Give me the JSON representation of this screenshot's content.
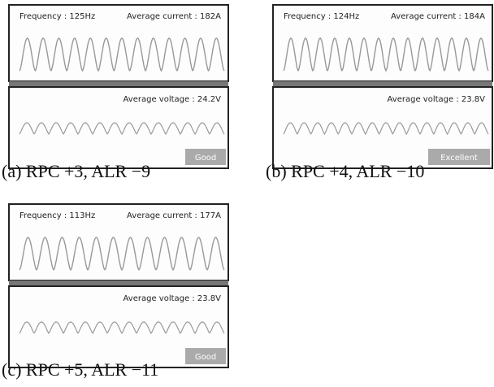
{
  "panels": [
    {
      "frequency": "Frequency : 125Hz",
      "current": "Average current : 182A",
      "voltage": "Average voltage : 24.2V",
      "rating": "Good",
      "caption": "(a) RPC +3, ALR −9"
    },
    {
      "frequency": "Frequency : 124Hz",
      "current": "Average current : 184A",
      "voltage": "Average voltage : 23.8V",
      "rating": "Excellent",
      "caption": "(b) RPC +4, ALR −10"
    },
    {
      "frequency": "Frequency : 113Hz",
      "current": "Average current : 177A",
      "voltage": "Average voltage : 23.8V",
      "rating": "Good",
      "caption": "(c) RPC +5, ALR −11"
    }
  ]
}
